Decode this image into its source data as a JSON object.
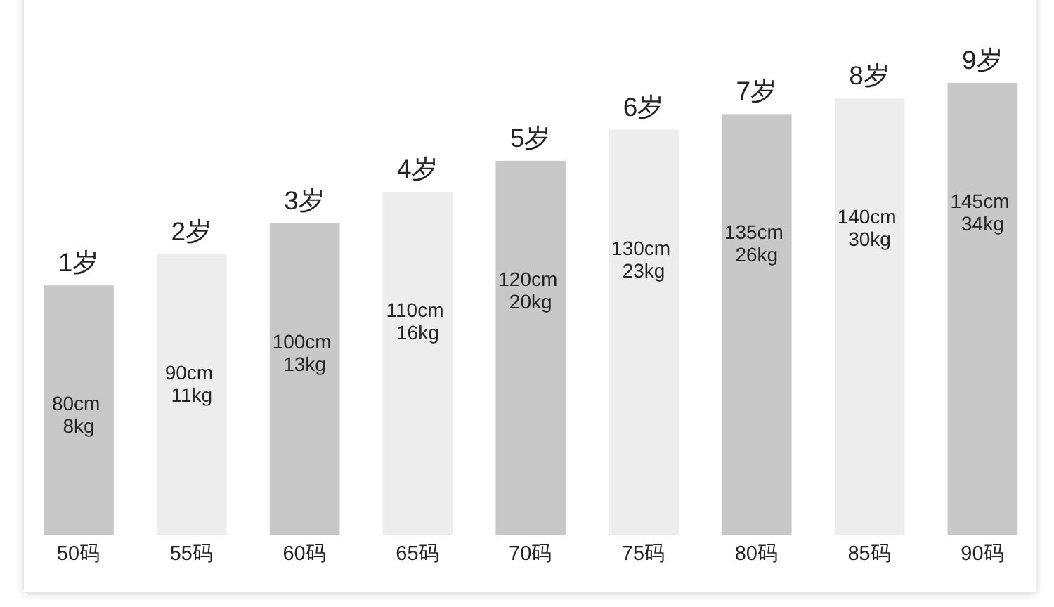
{
  "chart_data": {
    "type": "bar",
    "tick_labels": "x",
    "ylim": [
      0,
      145
    ],
    "categories": [
      "50码",
      "55码",
      "60码",
      "65码",
      "70码",
      "75码",
      "80码",
      "85码",
      "90码"
    ],
    "values": [
      80,
      90,
      100,
      110,
      120,
      130,
      135,
      140,
      145
    ],
    "colors": [
      "#c8c8c8",
      "#ededed",
      "#c8c8c8",
      "#ededed",
      "#c8c8c8",
      "#ededed",
      "#c8c8c8",
      "#ededed",
      "#c8c8c8"
    ],
    "value_labels": [
      "80cm 8kg",
      "90cm 11kg",
      "100cm 13kg",
      "110cm 16kg",
      "120cm 20kg",
      "130cm 23kg",
      "135cm 26kg",
      "140cm 30kg",
      "145cm 34kg"
    ],
    "annotations": [
      {
        "text": "1岁",
        "x": "50码",
        "y": 80
      },
      {
        "text": "2岁",
        "x": "55码",
        "y": 90
      },
      {
        "text": "3岁",
        "x": "60码",
        "y": 100
      },
      {
        "text": "4岁",
        "x": "65码",
        "y": 110
      },
      {
        "text": "5岁",
        "x": "70码",
        "y": 120
      },
      {
        "text": "6岁",
        "x": "75码",
        "y": 130
      },
      {
        "text": "7岁",
        "x": "80码",
        "y": 135
      },
      {
        "text": "8岁",
        "x": "85码",
        "y": 140
      },
      {
        "text": "9岁",
        "x": "90码",
        "y": 145
      }
    ]
  }
}
